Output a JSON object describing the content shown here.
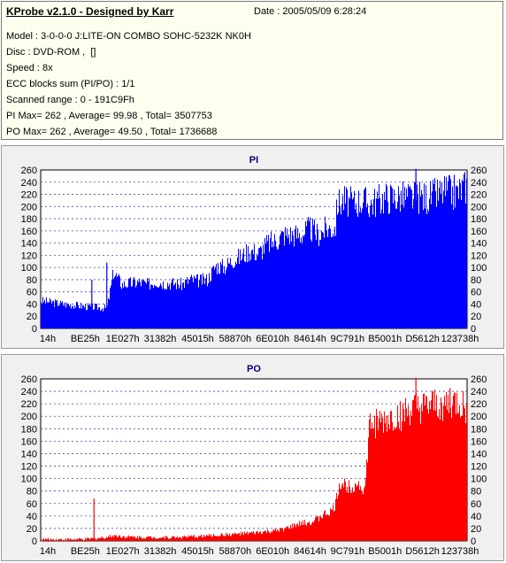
{
  "header": {
    "title": "KProbe v2.1.0 - Designed by Karr",
    "date": "Date : 2005/05/09 6:28:24",
    "lines": [
      "Model : 3-0-0-0 J:LITE-ON COMBO SOHC-5232K NK0H",
      "Disc : DVD-ROM ,  []",
      "Speed : 8x",
      "ECC blocks sum (PI/PO) : 1/1",
      "Scanned range : 0 - 191C9Fh",
      "PI Max= 262 , Average= 99.98 , Total= 3507753",
      "PO Max= 262 , Average= 49.50 , Total= 1736688"
    ]
  },
  "colors": {
    "pi": "#0000ff",
    "po": "#ff0000",
    "grid": "#4a4aa0"
  },
  "chart_data": [
    {
      "type": "area",
      "title": "PI",
      "categories": [
        "14h",
        "BE25h",
        "1E027h",
        "31382h",
        "45015h",
        "58870h",
        "6E010h",
        "84614h",
        "9C791h",
        "B5001h",
        "D5612h",
        "123738h"
      ],
      "ylim": [
        0,
        260
      ],
      "yticks": [
        0,
        20,
        40,
        60,
        80,
        100,
        120,
        140,
        160,
        180,
        200,
        220,
        240,
        260
      ],
      "grid": true,
      "series": [
        {
          "x": [
            0,
            0.02,
            0.04,
            0.06,
            0.08,
            0.1,
            0.12,
            0.14,
            0.155,
            0.17,
            0.19,
            0.21,
            0.23,
            0.25,
            0.27,
            0.29,
            0.31,
            0.33,
            0.35,
            0.37,
            0.39,
            0.41,
            0.43,
            0.45,
            0.47,
            0.49,
            0.51,
            0.53,
            0.55,
            0.57,
            0.59,
            0.61,
            0.63,
            0.65,
            0.67,
            0.69,
            0.695,
            0.71,
            0.73,
            0.75,
            0.77,
            0.79,
            0.81,
            0.83,
            0.85,
            0.87,
            0.89,
            0.91,
            0.93,
            0.95,
            0.97,
            0.99,
            1.0
          ],
          "y": [
            44,
            42,
            40,
            38,
            37,
            35,
            34,
            33,
            32,
            90,
            70,
            72,
            74,
            70,
            75,
            72,
            72,
            70,
            78,
            76,
            78,
            100,
            98,
            110,
            115,
            125,
            120,
            135,
            140,
            150,
            150,
            150,
            160,
            150,
            160,
            160,
            200,
            205,
            200,
            205,
            200,
            205,
            210,
            210,
            210,
            210,
            210,
            210,
            215,
            220,
            215,
            225,
            230
          ],
          "spikes": [
            {
              "x": 0.12,
              "y": 80
            },
            {
              "x": 0.155,
              "y": 108
            },
            {
              "x": 0.88,
              "y": 262
            },
            {
              "x": 0.97,
              "y": 252
            }
          ]
        }
      ]
    },
    {
      "type": "area",
      "title": "PO",
      "categories": [
        "14h",
        "BE25h",
        "1E027h",
        "31382h",
        "45015h",
        "58870h",
        "6E010h",
        "84614h",
        "9C791h",
        "B5001h",
        "D5612h",
        "123738h"
      ],
      "ylim": [
        0,
        260
      ],
      "yticks": [
        0,
        20,
        40,
        60,
        80,
        100,
        120,
        140,
        160,
        180,
        200,
        220,
        240,
        260
      ],
      "grid": true,
      "series": [
        {
          "x": [
            0,
            0.05,
            0.1,
            0.12,
            0.15,
            0.17,
            0.2,
            0.25,
            0.3,
            0.35,
            0.4,
            0.45,
            0.5,
            0.55,
            0.58,
            0.6,
            0.62,
            0.64,
            0.66,
            0.68,
            0.69,
            0.7,
            0.72,
            0.74,
            0.76,
            0.77,
            0.78,
            0.8,
            0.82,
            0.84,
            0.86,
            0.88,
            0.9,
            0.92,
            0.94,
            0.96,
            0.98,
            1.0
          ],
          "y": [
            2,
            2,
            2,
            3,
            5,
            8,
            6,
            5,
            5,
            6,
            8,
            10,
            12,
            15,
            20,
            25,
            28,
            30,
            40,
            45,
            55,
            90,
            85,
            90,
            80,
            180,
            182,
            185,
            190,
            195,
            200,
            205,
            205,
            210,
            210,
            212,
            215,
            200
          ],
          "spikes": [
            {
              "x": 0.125,
              "y": 68
            },
            {
              "x": 0.88,
              "y": 262
            },
            {
              "x": 0.96,
              "y": 245
            }
          ]
        }
      ]
    }
  ]
}
